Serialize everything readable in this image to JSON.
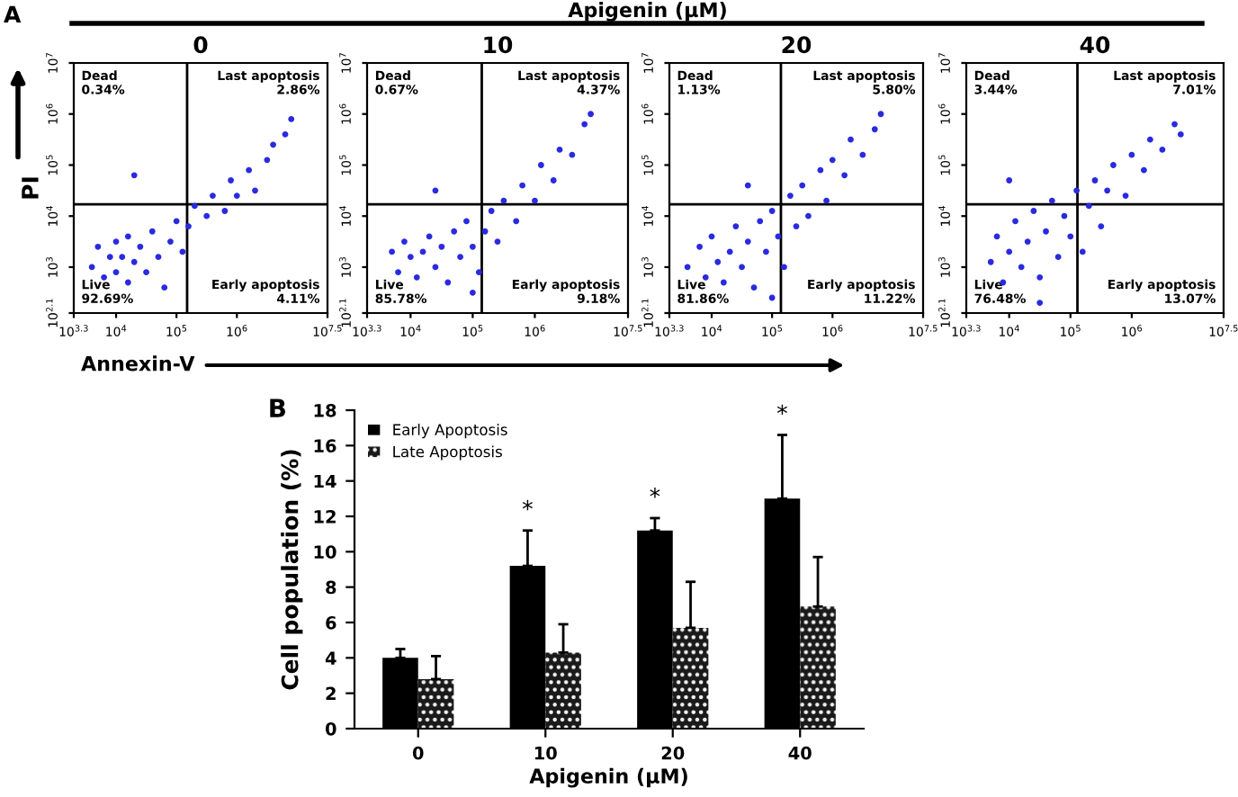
{
  "chart_data": [
    {
      "type": "scatter",
      "title": "0",
      "xlabel": "Annexin-V",
      "ylabel": "PI",
      "log": "xy",
      "marker": "circle",
      "annotations": [
        "A",
        "Apigenin (μM)",
        "Dead\n0.34%",
        "Last apoptosis\n2.86%",
        "Live\n92.69%",
        "Early apoptosis\n4.11%"
      ],
      "xlim": [
        1995,
        31600000.0
      ],
      "ylim": [
        126,
        10000000.0
      ],
      "xticks": [
        {
          "value": 1995,
          "label": "10$^{3.3}$"
        },
        {
          "value": 10000.0,
          "label": "10$^{4}$"
        },
        {
          "value": 100000.0,
          "label": "10$^{5}$"
        },
        {
          "value": 1000000.0,
          "label": "10$^{6}$"
        },
        {
          "value": 31600000.0,
          "label": "10$^{7.5}$"
        }
      ],
      "yticks": [
        {
          "value": 126,
          "label": "10$^{2.1}$"
        },
        {
          "value": 1000.0,
          "label": "10$^{3}$"
        },
        {
          "value": 10000.0,
          "label": "10$^{4}$"
        },
        {
          "value": 100000.0,
          "label": "10$^{5}$"
        },
        {
          "value": 1000000.0,
          "label": "10$^{6}$"
        },
        {
          "value": 10000000.0,
          "label": "10$^{7}$"
        }
      ],
      "ref_lines": [
        {
          "axis": "x",
          "value": 150000.0,
          "color": "#000000"
        },
        {
          "axis": "y",
          "value": 17000.0,
          "color": "#000000"
        }
      ],
      "series": [
        {
          "color": "#2a2ae0",
          "x": [
            3980.0,
            5010.0,
            6310.0,
            7940.0,
            10000.0,
            10000.0,
            12600.0,
            15800.0,
            15800.0,
            20000.0,
            25100.0,
            31600.0,
            39800.0,
            50100.0,
            63100.0,
            79400.0,
            100000.0,
            126000.0,
            158000.0,
            200000.0,
            316000.0,
            398000.0,
            631000.0,
            794000.0,
            1000000.0,
            1580000.0,
            2000000.0,
            3160000.0,
            3980000.0,
            6310000.0,
            7940000.0,
            20000.0
          ],
          "values": [
            1000.0,
            2510.0,
            631,
            1580.0,
            3160.0,
            794,
            1580.0,
            3980.0,
            501,
            1260.0,
            2510.0,
            794,
            5010.0,
            1580.0,
            398,
            3160.0,
            7940.0,
            2000.0,
            6310.0,
            15800.0,
            10000.0,
            25100.0,
            12600.0,
            50100.0,
            25100.0,
            79400.0,
            31600.0,
            126000.0,
            251000.0,
            398000.0,
            794000.0,
            63100.0
          ]
        }
      ]
    },
    {
      "type": "scatter",
      "title": "10",
      "log": "xy",
      "marker": "circle",
      "annotations": [
        "Dead\n0.67%",
        "Last apoptosis\n4.37%",
        "Live\n85.78%",
        "Early apoptosis\n9.18%"
      ],
      "xlim": [
        1995,
        31600000.0
      ],
      "ylim": [
        126,
        10000000.0
      ],
      "xticks": [
        {
          "value": 1995,
          "label": "10$^{3.3}$"
        },
        {
          "value": 10000.0,
          "label": "10$^{4}$"
        },
        {
          "value": 100000.0,
          "label": "10$^{5}$"
        },
        {
          "value": 1000000.0,
          "label": "10$^{6}$"
        },
        {
          "value": 31600000.0,
          "label": "10$^{7.5}$"
        }
      ],
      "yticks": [
        {
          "value": 126,
          "label": "10$^{2.1}$"
        },
        {
          "value": 1000.0,
          "label": "10$^{3}$"
        },
        {
          "value": 10000.0,
          "label": "10$^{4}$"
        },
        {
          "value": 100000.0,
          "label": "10$^{5}$"
        },
        {
          "value": 1000000.0,
          "label": "10$^{6}$"
        },
        {
          "value": 10000000.0,
          "label": "10$^{7}$"
        }
      ],
      "ref_lines": [
        {
          "axis": "x",
          "value": 140000.0,
          "color": "#000000"
        },
        {
          "axis": "y",
          "value": 17000.0,
          "color": "#000000"
        }
      ],
      "series": [
        {
          "color": "#2a2ae0",
          "x": [
            5010.0,
            6310.0,
            7940.0,
            10000.0,
            12600.0,
            15800.0,
            20000.0,
            25100.0,
            31600.0,
            39800.0,
            50100.0,
            63100.0,
            79400.0,
            100000.0,
            126000.0,
            158000.0,
            200000.0,
            251000.0,
            316000.0,
            501000.0,
            631000.0,
            1000000.0,
            1260000.0,
            2000000.0,
            2510000.0,
            3980000.0,
            6310000.0,
            7940000.0,
            25100.0,
            100000.0
          ],
          "values": [
            2000.0,
            794,
            3160.0,
            1580.0,
            631,
            2000.0,
            3980.0,
            1000.0,
            2510.0,
            501,
            5010.0,
            1580.0,
            7940.0,
            2510.0,
            794,
            5010.0,
            12600.0,
            3160.0,
            20000.0,
            7940.0,
            39800.0,
            20000.0,
            100000.0,
            50100.0,
            200000.0,
            158000.0,
            631000.0,
            1000000.0,
            31600.0,
            316
          ]
        }
      ]
    },
    {
      "type": "scatter",
      "title": "20",
      "log": "xy",
      "marker": "circle",
      "annotations": [
        "Dead\n1.13%",
        "Last apoptosis\n5.80%",
        "Live\n81.86%",
        "Early apoptosis\n11.22%"
      ],
      "xlim": [
        1995,
        31600000.0
      ],
      "ylim": [
        126,
        10000000.0
      ],
      "xticks": [
        {
          "value": 1995,
          "label": "10$^{3.3}$"
        },
        {
          "value": 10000.0,
          "label": "10$^{4}$"
        },
        {
          "value": 100000.0,
          "label": "10$^{5}$"
        },
        {
          "value": 1000000.0,
          "label": "10$^{6}$"
        },
        {
          "value": 31600000.0,
          "label": "10$^{7.5}$"
        }
      ],
      "yticks": [
        {
          "value": 126,
          "label": "10$^{2.1}$"
        },
        {
          "value": 1000.0,
          "label": "10$^{3}$"
        },
        {
          "value": 10000.0,
          "label": "10$^{4}$"
        },
        {
          "value": 100000.0,
          "label": "10$^{5}$"
        },
        {
          "value": 1000000.0,
          "label": "10$^{6}$"
        },
        {
          "value": 10000000.0,
          "label": "10$^{7}$"
        }
      ],
      "ref_lines": [
        {
          "axis": "x",
          "value": 140000.0,
          "color": "#000000"
        },
        {
          "axis": "y",
          "value": 17000.0,
          "color": "#000000"
        }
      ],
      "series": [
        {
          "color": "#2a2ae0",
          "x": [
            3980.0,
            6310.0,
            7940.0,
            10000.0,
            12600.0,
            15800.0,
            20000.0,
            25100.0,
            31600.0,
            39800.0,
            50100.0,
            63100.0,
            79400.0,
            100000.0,
            126000.0,
            158000.0,
            200000.0,
            251000.0,
            316000.0,
            398000.0,
            631000.0,
            794000.0,
            1000000.0,
            1580000.0,
            2000000.0,
            3160000.0,
            5010000.0,
            6310000.0,
            39800.0,
            100000.0
          ],
          "values": [
            1000.0,
            2510.0,
            631,
            3980.0,
            1260.0,
            501,
            2000.0,
            6310.0,
            1000.0,
            3160.0,
            398,
            7940.0,
            2000.0,
            12600.0,
            3980.0,
            1000.0,
            25100.0,
            6310.0,
            39800.0,
            10000.0,
            79400.0,
            20000.0,
            126000.0,
            63100.0,
            316000.0,
            158000.0,
            501000.0,
            1000000.0,
            39800.0,
            251
          ]
        }
      ]
    },
    {
      "type": "scatter",
      "title": "40",
      "log": "xy",
      "marker": "circle",
      "annotations": [
        "Dead\n3.44%",
        "Last apoptosis\n7.01%",
        "Live\n76.48%",
        "Early apoptosis\n13.07%"
      ],
      "xlim": [
        1995,
        31600000.0
      ],
      "ylim": [
        126,
        10000000.0
      ],
      "xticks": [
        {
          "value": 1995,
          "label": "10$^{3.3}$"
        },
        {
          "value": 10000.0,
          "label": "10$^{4}$"
        },
        {
          "value": 100000.0,
          "label": "10$^{5}$"
        },
        {
          "value": 1000000.0,
          "label": "10$^{6}$"
        },
        {
          "value": 31600000.0,
          "label": "10$^{7.5}$"
        }
      ],
      "yticks": [
        {
          "value": 126,
          "label": "10$^{2.1}$"
        },
        {
          "value": 1000.0,
          "label": "10$^{3}$"
        },
        {
          "value": 10000.0,
          "label": "10$^{4}$"
        },
        {
          "value": 100000.0,
          "label": "10$^{5}$"
        },
        {
          "value": 1000000.0,
          "label": "10$^{6}$"
        },
        {
          "value": 10000000.0,
          "label": "10$^{7}$"
        }
      ],
      "ref_lines": [
        {
          "axis": "x",
          "value": 130000.0,
          "color": "#000000"
        },
        {
          "axis": "y",
          "value": 17000.0,
          "color": "#000000"
        }
      ],
      "series": [
        {
          "color": "#2a2ae0",
          "x": [
            5010.0,
            6310.0,
            7940.0,
            10000.0,
            12600.0,
            15800.0,
            20000.0,
            25100.0,
            31600.0,
            39800.0,
            50100.0,
            63100.0,
            79400.0,
            100000.0,
            126000.0,
            158000.0,
            200000.0,
            251000.0,
            316000.0,
            398000.0,
            501000.0,
            794000.0,
            1000000.0,
            1580000.0,
            2000000.0,
            3160000.0,
            5010000.0,
            6310000.0,
            10000.0,
            31600.0
          ],
          "values": [
            1260.0,
            3980.0,
            501,
            2000.0,
            7940.0,
            1000.0,
            3160.0,
            12600.0,
            631,
            5010.0,
            20000.0,
            1580.0,
            10000.0,
            3980.0,
            31600.0,
            2000.0,
            15800.0,
            50100.0,
            6310.0,
            31600.0,
            100000.0,
            25100.0,
            158000.0,
            79400.0,
            316000.0,
            200000.0,
            631000.0,
            398000.0,
            50100.0,
            200
          ]
        }
      ]
    },
    {
      "type": "bar",
      "xlabel": "Apigenin (μM)",
      "ylabel": "Cell population (%)",
      "legend": "top left",
      "categories": [
        "0",
        "10",
        "20",
        "40"
      ],
      "ylim": [
        0,
        18
      ],
      "yticks": [
        0,
        2,
        4,
        6,
        8,
        10,
        12,
        14,
        16,
        18
      ],
      "annotations": [
        "B",
        "*",
        "*",
        "*"
      ],
      "series": [
        {
          "name": "Early Apoptosis",
          "color": "#000000",
          "values": [
            4.0,
            9.2,
            11.2,
            13.0
          ],
          "errors": [
            [
              4.0,
              4.5
            ],
            [
              9.2,
              11.2
            ],
            [
              11.2,
              11.9
            ],
            [
              13.0,
              16.6
            ]
          ]
        },
        {
          "name": "Late Apoptosis",
          "color": "#1a1a1a",
          "values": [
            2.8,
            4.3,
            5.7,
            6.9
          ],
          "errors": [
            [
              2.8,
              4.1
            ],
            [
              4.3,
              5.9
            ],
            [
              5.7,
              8.3
            ],
            [
              6.9,
              9.7
            ]
          ]
        }
      ]
    }
  ]
}
